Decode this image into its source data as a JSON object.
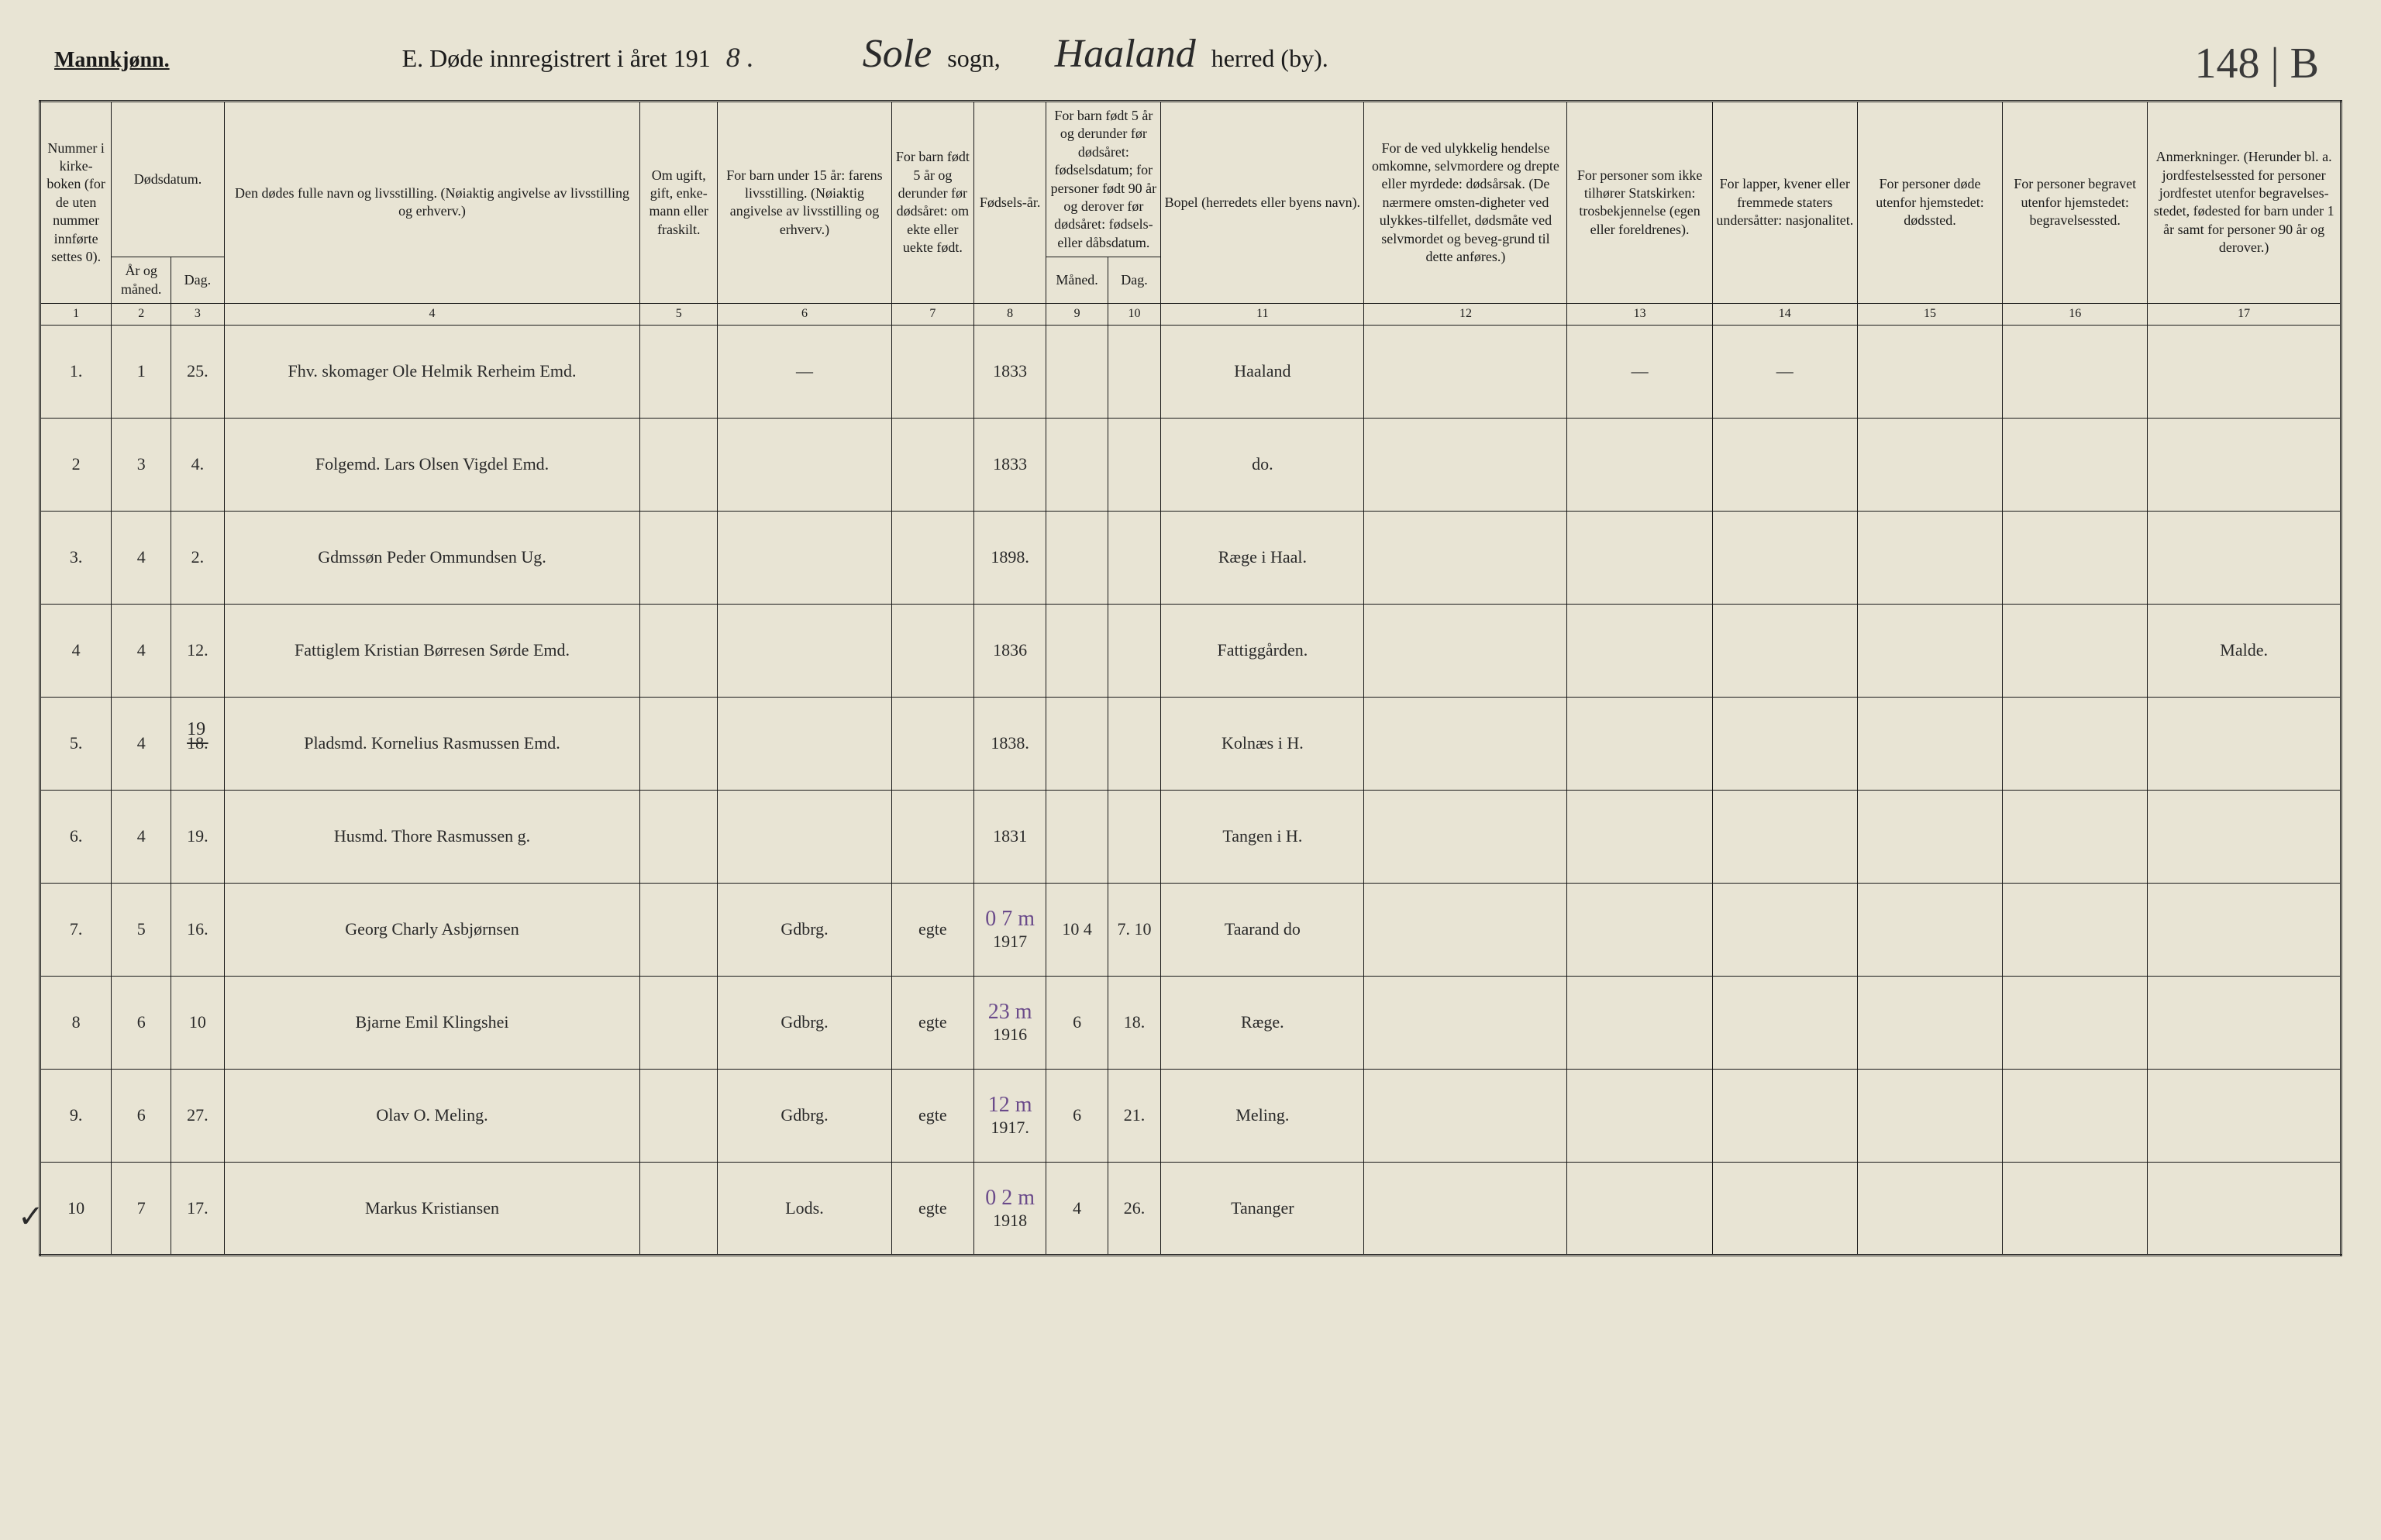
{
  "header": {
    "gender": "Mannkjønn.",
    "title_prefix": "E. Døde innregistrert i året 191",
    "year_suffix": "8 .",
    "sogn_value": "Sole",
    "sogn_label": "sogn,",
    "herred_value": "Haaland",
    "herred_label": "herred (by).",
    "page_number": "148 | B"
  },
  "columns": {
    "c1": "Nummer i kirke-boken (for de uten nummer innførte settes 0).",
    "c2_group": "Dødsdatum.",
    "c2a": "År og måned.",
    "c2b": "Dag.",
    "c4": "Den dødes fulle navn og livsstilling. (Nøiaktig angivelse av livsstilling og erhverv.)",
    "c5": "Om ugift, gift, enke-mann eller fraskilt.",
    "c6": "For barn under 15 år: farens livsstilling. (Nøiaktig angivelse av livsstilling og erhverv.)",
    "c7": "For barn født 5 år og derunder før dødsåret: om ekte eller uekte født.",
    "c8": "Fødsels-år.",
    "c9_group": "For barn født 5 år og derunder før dødsåret: fødselsdatum; for personer født 90 år og derover før dødsåret: fødsels- eller dåbsdatum.",
    "c9a": "Måned.",
    "c9b": "Dag.",
    "c11": "Bopel (herredets eller byens navn).",
    "c12": "For de ved ulykkelig hendelse omkomne, selvmordere og drepte eller myrdede: dødsårsak. (De nærmere omsten-digheter ved ulykkes-tilfellet, dødsmåte ved selvmordet og beveg-grund til dette anføres.)",
    "c13": "For personer som ikke tilhører Statskirken: trosbekjennelse (egen eller foreldrenes).",
    "c14": "For lapper, kvener eller fremmede staters undersåtter: nasjonalitet.",
    "c15": "For personer døde utenfor hjemstedet: dødssted.",
    "c16": "For personer begravet utenfor hjemstedet: begravelsessted.",
    "c17": "Anmerkninger. (Herunder bl. a. jordfestelsessted for personer jordfestet utenfor begravelses-stedet, fødested for barn under 1 år samt for personer 90 år og derover.)"
  },
  "colnums": [
    "1",
    "2",
    "3",
    "4",
    "5",
    "6",
    "7",
    "8",
    "9",
    "10",
    "11",
    "12",
    "13",
    "14",
    "15",
    "16",
    "17"
  ],
  "rows": [
    {
      "num": "1.",
      "mon": "1",
      "day": "25.",
      "name": "Fhv. skomager Ole Helmik Rerheim Emd.",
      "status": "",
      "father": "—",
      "ekte": "",
      "birthyr": "1833",
      "bmon": "",
      "bday": "",
      "bopel": "Haaland",
      "c12": "",
      "c13": "—",
      "c14": "—",
      "c15": "",
      "c16": "",
      "c17": ""
    },
    {
      "num": "2",
      "mon": "3",
      "day": "4.",
      "name": "Folgemd. Lars Olsen Vigdel Emd.",
      "status": "",
      "father": "",
      "ekte": "",
      "birthyr": "1833",
      "bmon": "",
      "bday": "",
      "bopel": "do.",
      "c12": "",
      "c13": "",
      "c14": "",
      "c15": "",
      "c16": "",
      "c17": ""
    },
    {
      "num": "3.",
      "mon": "4",
      "day": "2.",
      "name": "Gdmssøn Peder Ommundsen Ug.",
      "status": "",
      "father": "",
      "ekte": "",
      "birthyr": "1898.",
      "bmon": "",
      "bday": "",
      "bopel": "Ræge i Haal.",
      "c12": "",
      "c13": "",
      "c14": "",
      "c15": "",
      "c16": "",
      "c17": ""
    },
    {
      "num": "4",
      "mon": "4",
      "day": "12.",
      "name": "Fattiglem Kristian Børresen Sørde Emd.",
      "status": "",
      "father": "",
      "ekte": "",
      "birthyr": "1836",
      "bmon": "",
      "bday": "",
      "bopel": "Fattiggården.",
      "c12": "",
      "c13": "",
      "c14": "",
      "c15": "",
      "c16": "",
      "c17": "Malde."
    },
    {
      "num": "5.",
      "mon": "4",
      "day": "18.",
      "day_above": "19",
      "name": "Pladsmd. Kornelius Rasmussen Emd.",
      "status": "",
      "father": "",
      "ekte": "",
      "birthyr": "1838.",
      "bmon": "",
      "bday": "",
      "bopel": "Kolnæs i H.",
      "c12": "",
      "c13": "",
      "c14": "",
      "c15": "",
      "c16": "",
      "c17": ""
    },
    {
      "num": "6.",
      "mon": "4",
      "day": "19.",
      "name": "Husmd. Thore Rasmussen g.",
      "status": "",
      "father": "",
      "ekte": "",
      "birthyr": "1831",
      "bmon": "",
      "bday": "",
      "bopel": "Tangen i H.",
      "c12": "",
      "c13": "",
      "c14": "",
      "c15": "",
      "c16": "",
      "c17": ""
    },
    {
      "num": "7.",
      "mon": "5",
      "day": "16.",
      "name": "Georg Charly Asbjørnsen",
      "status": "",
      "father": "Gdbrg.",
      "ekte": "egte",
      "birthyr": "1917",
      "birthyr_note": "0 7 m",
      "bmon": "10 4",
      "bday": "7. 10",
      "bopel": "Taarand do",
      "c12": "",
      "c13": "",
      "c14": "",
      "c15": "",
      "c16": "",
      "c17": ""
    },
    {
      "num": "8",
      "mon": "6",
      "day": "10",
      "name": "Bjarne Emil Klingshei",
      "status": "",
      "father": "Gdbrg.",
      "ekte": "egte",
      "birthyr": "1916",
      "birthyr_note": "23 m",
      "bmon": "6",
      "bday": "18.",
      "bopel": "Ræge.",
      "c12": "",
      "c13": "",
      "c14": "",
      "c15": "",
      "c16": "",
      "c17": ""
    },
    {
      "num": "9.",
      "mon": "6",
      "day": "27.",
      "name": "Olav O. Meling.",
      "status": "",
      "father": "Gdbrg.",
      "ekte": "egte",
      "birthyr": "1917.",
      "birthyr_note": "12 m",
      "bmon": "6",
      "bday": "21.",
      "bopel": "Meling.",
      "c12": "",
      "c13": "",
      "c14": "",
      "c15": "",
      "c16": "",
      "c17": ""
    },
    {
      "num": "10",
      "mon": "7",
      "day": "17.",
      "check": "✓",
      "name": "Markus Kristiansen",
      "status": "",
      "father": "Lods.",
      "ekte": "egte",
      "birthyr": "1918",
      "birthyr_note": "0 2 m",
      "bmon": "4",
      "bday": "26.",
      "bopel": "Tananger",
      "c12": "",
      "c13": "",
      "c14": "",
      "c15": "",
      "c16": "",
      "c17": ""
    }
  ],
  "widths": {
    "c1": "60px",
    "c2a": "55px",
    "c2b": "55px",
    "c4": "430px",
    "c5": "80px",
    "c6": "180px",
    "c7": "85px",
    "c8": "75px",
    "c9a": "55px",
    "c9b": "55px",
    "c11": "210px",
    "c12": "210px",
    "c13": "150px",
    "c14": "150px",
    "c15": "150px",
    "c16": "150px",
    "c17": "200px"
  }
}
